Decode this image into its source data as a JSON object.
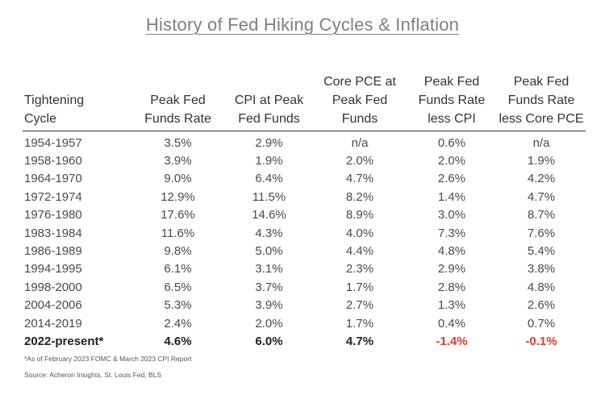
{
  "title": "History of Fed Hiking Cycles & Inflation",
  "table": {
    "headers": [
      [
        "Tightening",
        "Cycle"
      ],
      [
        "Peak Fed",
        "Funds Rate"
      ],
      [
        "CPI at Peak",
        "Fed Funds"
      ],
      [
        "Core PCE at",
        "Peak Fed",
        "Funds"
      ],
      [
        "Peak Fed",
        "Funds Rate",
        "less CPI"
      ],
      [
        "Peak Fed",
        "Funds Rate",
        "less Core PCE"
      ]
    ],
    "rows": [
      [
        "1954-1957",
        "3.5%",
        "2.9%",
        "n/a",
        "0.6%",
        "n/a"
      ],
      [
        "1958-1960",
        "3.9%",
        "1.9%",
        "2.0%",
        "2.0%",
        "1.9%"
      ],
      [
        "1964-1970",
        "9.0%",
        "6.4%",
        "4.7%",
        "2.6%",
        "4.2%"
      ],
      [
        "1972-1974",
        "12.9%",
        "11.5%",
        "8.2%",
        "1.4%",
        "4.7%"
      ],
      [
        "1976-1980",
        "17.6%",
        "14.6%",
        "8.9%",
        "3.0%",
        "8.7%"
      ],
      [
        "1983-1984",
        "11.6%",
        "4.3%",
        "4.0%",
        "7.3%",
        "7.6%"
      ],
      [
        "1986-1989",
        "9.8%",
        "5.0%",
        "4.4%",
        "4.8%",
        "5.4%"
      ],
      [
        "1994-1995",
        "6.1%",
        "3.1%",
        "2.3%",
        "2.9%",
        "3.8%"
      ],
      [
        "1998-2000",
        "6.5%",
        "3.7%",
        "1.7%",
        "2.8%",
        "4.8%"
      ],
      [
        "2004-2006",
        "5.3%",
        "3.9%",
        "2.7%",
        "1.3%",
        "2.6%"
      ],
      [
        "2014-2019",
        "2.4%",
        "2.0%",
        "1.7%",
        "0.4%",
        "0.7%"
      ],
      [
        "2022-present*",
        "4.6%",
        "6.0%",
        "4.7%",
        "-1.4%",
        "-0.1%"
      ]
    ]
  },
  "colors": {
    "negative": "#e03c31",
    "title": "#7f7f7f"
  },
  "footnote": "*As of February 2023 FOMC & March 2023 CPI Report",
  "source": "Source: Acheron Insights, St. Louis Fed, BLS"
}
